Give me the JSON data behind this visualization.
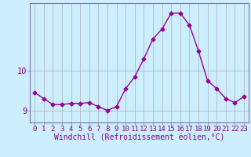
{
  "x": [
    0,
    1,
    2,
    3,
    4,
    5,
    6,
    7,
    8,
    9,
    10,
    11,
    12,
    13,
    14,
    15,
    16,
    17,
    18,
    19,
    20,
    21,
    22,
    23
  ],
  "y": [
    9.45,
    9.3,
    9.15,
    9.15,
    9.18,
    9.18,
    9.2,
    9.1,
    9.0,
    9.1,
    9.55,
    9.85,
    10.3,
    10.8,
    11.05,
    11.45,
    11.45,
    11.15,
    10.5,
    9.75,
    9.55,
    9.3,
    9.2,
    9.35
  ],
  "line_color": "#990099",
  "marker": "D",
  "marker_size": 2.5,
  "bg_color": "#cceeff",
  "grid_color": "#b0b0b0",
  "xlabel": "Windchill (Refroidissement éolien,°C)",
  "xlim": [
    -0.5,
    23.5
  ],
  "ylim": [
    8.7,
    11.7
  ],
  "yticks": [
    9,
    10
  ],
  "xticks": [
    0,
    1,
    2,
    3,
    4,
    5,
    6,
    7,
    8,
    9,
    10,
    11,
    12,
    13,
    14,
    15,
    16,
    17,
    18,
    19,
    20,
    21,
    22,
    23
  ],
  "xlabel_fontsize": 7,
  "tick_fontsize": 6.5,
  "label_color": "#880088",
  "spine_color": "#7777aa",
  "linewidth": 1.0
}
